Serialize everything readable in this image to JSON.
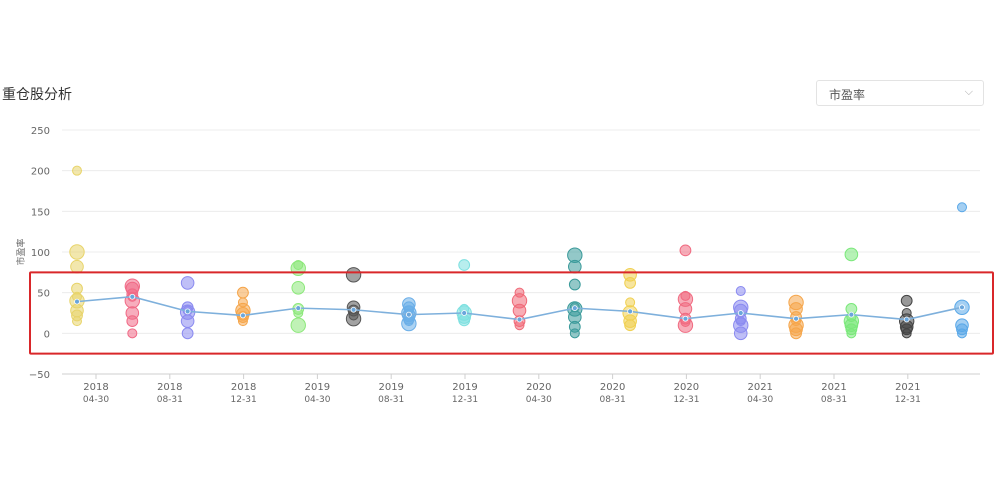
{
  "header": {
    "title": "重仓股分析",
    "metric_select": "市盈率",
    "chevron_glyph": "⌵"
  },
  "chart_data": {
    "type": "scatter",
    "title": "重仓股分析",
    "ylabel": "市盈率",
    "xlabel": "",
    "ylim": [
      -50,
      250
    ],
    "yticks": [
      -50,
      0,
      50,
      100,
      150,
      200,
      250
    ],
    "grid": true,
    "categories": [
      [
        "2018",
        "04-30"
      ],
      [
        "2018",
        "08-31"
      ],
      [
        "2018",
        "12-31"
      ],
      [
        "2019",
        "04-30"
      ],
      [
        "2019",
        "08-31"
      ],
      [
        "2019",
        "12-31"
      ],
      [
        "2020",
        "04-30"
      ],
      [
        "2020",
        "08-31"
      ],
      [
        "2020",
        "12-31"
      ],
      [
        "2021",
        "04-30"
      ],
      [
        "2021",
        "08-31"
      ],
      [
        "2021",
        "12-31"
      ]
    ],
    "periods": [
      {
        "color": "#e8d46a",
        "points": [
          200,
          100,
          82,
          55,
          45,
          40,
          28,
          22,
          15
        ],
        "avg": 39
      },
      {
        "color": "#f06a86",
        "points": [
          58,
          55,
          48,
          45,
          40,
          25,
          15,
          0
        ],
        "avg": 45
      },
      {
        "color": "#8a8af0",
        "points": [
          62,
          32,
          28,
          26,
          15,
          0
        ],
        "avg": 27
      },
      {
        "color": "#f5a54a",
        "points": [
          50,
          38,
          28,
          24,
          20,
          15
        ],
        "avg": 22
      },
      {
        "color": "#8ce87a",
        "points": [
          84,
          80,
          56,
          30,
          25,
          10
        ],
        "avg": 31
      },
      {
        "color": "#555555",
        "points": [
          72,
          32,
          28,
          22,
          18
        ],
        "avg": 29
      },
      {
        "color": "#6aaee8",
        "points": [
          36,
          32,
          28,
          25,
          22,
          18,
          15,
          12
        ],
        "avg": 23
      },
      {
        "color": "#7de0e0",
        "points": [
          84,
          30,
          25,
          20,
          16
        ],
        "avg": 25
      },
      {
        "color": "#f06a78",
        "points": [
          50,
          40,
          28,
          15,
          10
        ],
        "avg": 17
      },
      {
        "color": "#3a9a9a",
        "points": [
          96,
          82,
          60,
          32,
          30,
          20,
          8,
          0
        ],
        "avg": 31
      },
      {
        "color": "#f0d050",
        "points": [
          72,
          62,
          38,
          25,
          15,
          10
        ],
        "avg": 27
      },
      {
        "color": "#f06a80",
        "points": [
          102,
          46,
          42,
          30,
          18,
          14,
          10
        ],
        "avg": 18
      },
      {
        "color": "#8a8af0",
        "points": [
          52,
          32,
          28,
          18,
          15,
          10,
          0
        ],
        "avg": 25
      },
      {
        "color": "#f5a54a",
        "points": [
          38,
          30,
          20,
          15,
          10,
          5,
          0
        ],
        "avg": 18
      },
      {
        "color": "#7ae87a",
        "points": [
          97,
          30,
          20,
          15,
          10,
          5,
          0
        ],
        "avg": 23
      },
      {
        "color": "#444444",
        "points": [
          40,
          25,
          15,
          8,
          5,
          0
        ],
        "avg": 17
      },
      {
        "color": "#5aa8e8",
        "points": [
          155,
          32,
          10,
          5,
          0
        ],
        "avg": 32
      }
    ],
    "line": {
      "name": "",
      "color": "#7eb0dc"
    },
    "highlight": {
      "y_range": [
        -25,
        75
      ],
      "color": "#d9272a"
    }
  }
}
